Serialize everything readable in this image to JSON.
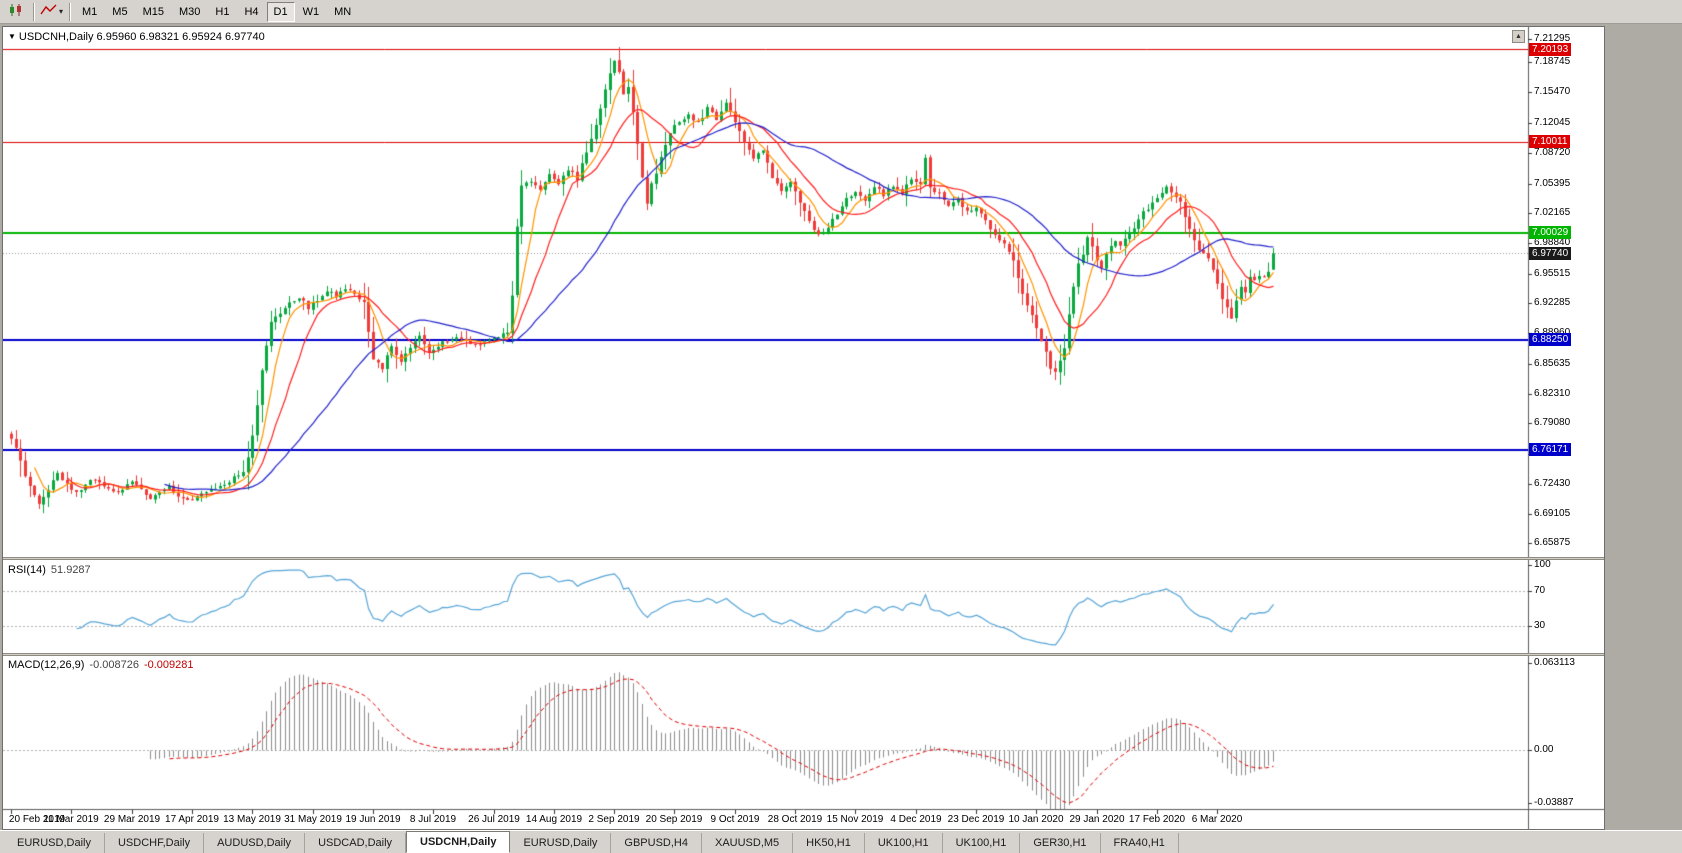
{
  "toolbar": {
    "icon_buttons": [
      {
        "name": "chart-type-button",
        "icon": "candlestick-chart-icon"
      },
      {
        "name": "indicators-dropdown-button",
        "icon": "zigzag-line-icon",
        "caret": "▾"
      }
    ],
    "timeframes": [
      {
        "label": "M1",
        "active": false
      },
      {
        "label": "M5",
        "active": false
      },
      {
        "label": "M15",
        "active": false
      },
      {
        "label": "M30",
        "active": false
      },
      {
        "label": "H1",
        "active": false
      },
      {
        "label": "H4",
        "active": false
      },
      {
        "label": "D1",
        "active": true
      },
      {
        "label": "W1",
        "active": false
      },
      {
        "label": "MN",
        "active": false
      }
    ]
  },
  "chart": {
    "title": {
      "collapse_icon": "▼",
      "symbol": "USDCNH,Daily",
      "ohlc": "6.95960 6.98321 6.95924 6.97740"
    },
    "rsi_label": {
      "name": "RSI(14)",
      "value": "51.9287"
    },
    "macd_label": {
      "name": "MACD(12,26,9)",
      "hist": "-0.008726",
      "signal": "-0.009281"
    },
    "scroll_button": "▲"
  },
  "chart_data": {
    "type": "candlestick",
    "symbol": "USDCNH",
    "timeframe": "Daily",
    "title": "USDCNH,Daily",
    "last_candle": {
      "open": 6.9596,
      "high": 6.98321,
      "low": 6.95924,
      "close": 6.9774
    },
    "n": 273,
    "main_range": [
      6.645,
      7.225
    ],
    "current_price": 6.9774,
    "candle_up_color": "#0aa83f",
    "candle_down_color": "#f03b3b",
    "current_line_color": "#9a9a9a",
    "y_ticks": [
      7.21295,
      7.18745,
      7.1547,
      7.12045,
      7.0872,
      7.05395,
      7.02165,
      6.9884,
      6.95515,
      6.92285,
      6.8896,
      6.85635,
      6.8231,
      6.7908,
      6.75755,
      6.7243,
      6.69105,
      6.65875
    ],
    "levels": [
      {
        "value": 7.20193,
        "color": "#dd0000",
        "width": 1
      },
      {
        "value": 7.10011,
        "color": "#dd0000",
        "width": 1
      },
      {
        "value": 7.00029,
        "color": "#00b400",
        "width": 2
      },
      {
        "value": 6.8825,
        "color": "#0000cc",
        "width": 2
      },
      {
        "value": 6.76171,
        "color": "#0000cc",
        "width": 2
      }
    ],
    "ma": [
      {
        "period": 6,
        "color": "#ff9500"
      },
      {
        "period": 13,
        "color": "#ff2020"
      },
      {
        "period": 34,
        "color": "#2424cc"
      }
    ],
    "rsi": {
      "period": 14,
      "value": 51.9287,
      "color": "#58a6d8",
      "axis_ticks": [
        100,
        70,
        30
      ],
      "dotted_levels": [
        70,
        30
      ],
      "range": [
        0,
        105
      ]
    },
    "macd": {
      "fast": 12,
      "slow": 26,
      "signal": 9,
      "hist_value": -0.008726,
      "signal_value": -0.009281,
      "range": [
        -0.0425,
        0.0675
      ],
      "axis_ticks": [
        "0.063113",
        "0.00",
        "-0.03887"
      ],
      "hist_color": "#8e8e8e",
      "signal_color": "#e00000"
    },
    "x_labels": [
      "20 Feb 2019",
      "11 Mar 2019",
      "29 Mar 2019",
      "17 Apr 2019",
      "13 May 2019",
      "31 May 2019",
      "19 Jun 2019",
      "8 Jul 2019",
      "26 Jul 2019",
      "14 Aug 2019",
      "2 Sep 2019",
      "20 Sep 2019",
      "9 Oct 2019",
      "28 Oct 2019",
      "15 Nov 2019",
      "4 Dec 2019",
      "23 Dec 2019",
      "10 Jan 2020",
      "29 Jan 2020",
      "17 Feb 2020",
      "6 Mar 2020"
    ],
    "anchors": [
      [
        0,
        6.775
      ],
      [
        3,
        6.735
      ],
      [
        6,
        6.7
      ],
      [
        10,
        6.735
      ],
      [
        14,
        6.715
      ],
      [
        18,
        6.73
      ],
      [
        22,
        6.715
      ],
      [
        26,
        6.725
      ],
      [
        30,
        6.71
      ],
      [
        34,
        6.72
      ],
      [
        38,
        6.705
      ],
      [
        42,
        6.715
      ],
      [
        46,
        6.725
      ],
      [
        50,
        6.735
      ],
      [
        52,
        6.775
      ],
      [
        54,
        6.85
      ],
      [
        56,
        6.9
      ],
      [
        58,
        6.912
      ],
      [
        60,
        6.922
      ],
      [
        62,
        6.93
      ],
      [
        64,
        6.918
      ],
      [
        66,
        6.926
      ],
      [
        68,
        6.936
      ],
      [
        70,
        6.93
      ],
      [
        72,
        6.94
      ],
      [
        74,
        6.935
      ],
      [
        76,
        6.922
      ],
      [
        78,
        6.862
      ],
      [
        80,
        6.852
      ],
      [
        82,
        6.878
      ],
      [
        84,
        6.858
      ],
      [
        86,
        6.875
      ],
      [
        88,
        6.886
      ],
      [
        90,
        6.868
      ],
      [
        93,
        6.88
      ],
      [
        96,
        6.886
      ],
      [
        99,
        6.876
      ],
      [
        102,
        6.881
      ],
      [
        105,
        6.886
      ],
      [
        107,
        6.89
      ],
      [
        108,
        6.93
      ],
      [
        109,
        7.005
      ],
      [
        110,
        7.05
      ],
      [
        112,
        7.058
      ],
      [
        114,
        7.046
      ],
      [
        116,
        7.062
      ],
      [
        118,
        7.055
      ],
      [
        120,
        7.07
      ],
      [
        122,
        7.06
      ],
      [
        124,
        7.088
      ],
      [
        126,
        7.118
      ],
      [
        128,
        7.158
      ],
      [
        130,
        7.188
      ],
      [
        131,
        7.176
      ],
      [
        132,
        7.152
      ],
      [
        133,
        7.162
      ],
      [
        134,
        7.132
      ],
      [
        135,
        7.1
      ],
      [
        136,
        7.062
      ],
      [
        137,
        7.032
      ],
      [
        138,
        7.052
      ],
      [
        140,
        7.082
      ],
      [
        142,
        7.112
      ],
      [
        144,
        7.122
      ],
      [
        146,
        7.132
      ],
      [
        148,
        7.12
      ],
      [
        150,
        7.136
      ],
      [
        152,
        7.126
      ],
      [
        154,
        7.142
      ],
      [
        156,
        7.12
      ],
      [
        158,
        7.1
      ],
      [
        160,
        7.082
      ],
      [
        162,
        7.092
      ],
      [
        164,
        7.062
      ],
      [
        166,
        7.046
      ],
      [
        168,
        7.056
      ],
      [
        170,
        7.032
      ],
      [
        172,
        7.012
      ],
      [
        174,
        6.996
      ],
      [
        176,
        7.006
      ],
      [
        178,
        7.022
      ],
      [
        180,
        7.036
      ],
      [
        182,
        7.046
      ],
      [
        184,
        7.036
      ],
      [
        186,
        7.052
      ],
      [
        188,
        7.042
      ],
      [
        190,
        7.052
      ],
      [
        192,
        7.042
      ],
      [
        194,
        7.06
      ],
      [
        196,
        7.052
      ],
      [
        197,
        7.082
      ],
      [
        198,
        7.052
      ],
      [
        200,
        7.042
      ],
      [
        202,
        7.032
      ],
      [
        204,
        7.036
      ],
      [
        206,
        7.022
      ],
      [
        208,
        7.026
      ],
      [
        210,
        7.012
      ],
      [
        212,
        6.996
      ],
      [
        214,
        6.986
      ],
      [
        216,
        6.972
      ],
      [
        218,
        6.932
      ],
      [
        220,
        6.912
      ],
      [
        222,
        6.882
      ],
      [
        224,
        6.852
      ],
      [
        225,
        6.846
      ],
      [
        226,
        6.862
      ],
      [
        227,
        6.872
      ],
      [
        228,
        6.912
      ],
      [
        229,
        6.942
      ],
      [
        230,
        6.966
      ],
      [
        231,
        6.976
      ],
      [
        232,
        6.996
      ],
      [
        233,
        6.986
      ],
      [
        234,
        6.972
      ],
      [
        235,
        6.96
      ],
      [
        236,
        6.976
      ],
      [
        237,
        6.986
      ],
      [
        238,
        6.992
      ],
      [
        239,
        6.986
      ],
      [
        240,
        6.996
      ],
      [
        242,
        7.006
      ],
      [
        244,
        7.022
      ],
      [
        246,
        7.032
      ],
      [
        248,
        7.046
      ],
      [
        249,
        7.052
      ],
      [
        250,
        7.042
      ],
      [
        252,
        7.032
      ],
      [
        254,
        7.006
      ],
      [
        256,
        6.982
      ],
      [
        258,
        6.972
      ],
      [
        260,
        6.942
      ],
      [
        262,
        6.916
      ],
      [
        263,
        6.906
      ],
      [
        264,
        6.926
      ],
      [
        265,
        6.942
      ],
      [
        266,
        6.936
      ],
      [
        267,
        6.952
      ],
      [
        268,
        6.946
      ],
      [
        269,
        6.955
      ],
      [
        270,
        6.952
      ],
      [
        271,
        6.958
      ],
      [
        272,
        6.9774
      ]
    ]
  },
  "tabs": [
    {
      "label": "EURUSD,Daily",
      "active": false
    },
    {
      "label": "USDCHF,Daily",
      "active": false
    },
    {
      "label": "AUDUSD,Daily",
      "active": false
    },
    {
      "label": "USDCAD,Daily",
      "active": false
    },
    {
      "label": "USDCNH,Daily",
      "active": true
    },
    {
      "label": "EURUSD,Daily",
      "active": false
    },
    {
      "label": "GBPUSD,H4",
      "active": false
    },
    {
      "label": "XAUUSD,M5",
      "active": false
    },
    {
      "label": "HK50,H1",
      "active": false
    },
    {
      "label": "UK100,H1",
      "active": false
    },
    {
      "label": "UK100,H1",
      "active": false
    },
    {
      "label": "GER30,H1",
      "active": false
    },
    {
      "label": "FRA40,H1",
      "active": false
    }
  ]
}
